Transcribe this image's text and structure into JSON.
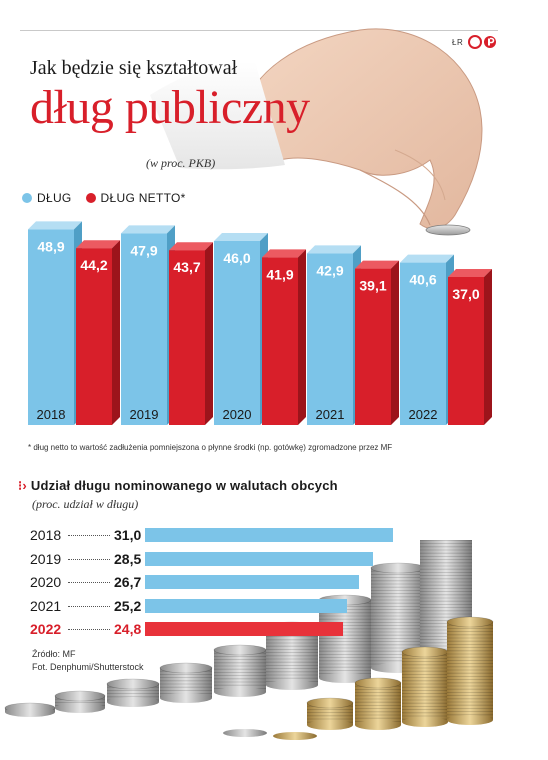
{
  "brand": {
    "prefix": "ŁR"
  },
  "title_line1": "Jak będzie się kształtował",
  "title_line2": "dług publiczny",
  "subtitle": "(w proc. PKB)",
  "legend": [
    {
      "label": "DŁUG",
      "color": "#7cc4e8"
    },
    {
      "label": "DŁUG NETTO*",
      "color": "#d81f2a"
    }
  ],
  "chart_data": [
    {
      "type": "bar",
      "categories": [
        "2018",
        "2019",
        "2020",
        "2021",
        "2022"
      ],
      "series": [
        {
          "name": "DŁUG",
          "values": [
            48.9,
            47.9,
            46.0,
            42.9,
            40.6
          ],
          "labels": [
            "48,9",
            "47,9",
            "46,0",
            "42,9",
            "40,6"
          ],
          "color": "#7cc4e8"
        },
        {
          "name": "DŁUG NETTO*",
          "values": [
            44.2,
            43.7,
            41.9,
            39.1,
            37.0
          ],
          "labels": [
            "44,2",
            "43,7",
            "41,9",
            "39,1",
            "37,0"
          ],
          "color": "#d81f2a"
        }
      ],
      "grid": false,
      "legend": "top-left"
    },
    {
      "type": "bar",
      "orientation": "horizontal",
      "title": "Udział długu nominowanego w walutach obcych",
      "subtitle": "(proc. udział w długu)",
      "categories": [
        "2018",
        "2019",
        "2020",
        "2021",
        "2022"
      ],
      "values": [
        31.0,
        28.5,
        26.7,
        25.2,
        24.8
      ],
      "labels": [
        "31,0",
        "28,5",
        "26,7",
        "25,2",
        "24,8"
      ],
      "highlight": "2022",
      "colors": {
        "default": "#7cc4e8",
        "highlight": "#e8323a"
      }
    }
  ],
  "footnote": "* dług netto to wartość zadłużenia pomniejszona o płynne środki (np. gotówkę) zgromadzone przez MF",
  "section_title": "Udział długu nominowanego w walutach obcych",
  "section_subtitle": "(proc. udział w długu)",
  "source": {
    "line1": "Źródło: MF",
    "line2": "Fot. Denphumi/Shutterstock"
  }
}
